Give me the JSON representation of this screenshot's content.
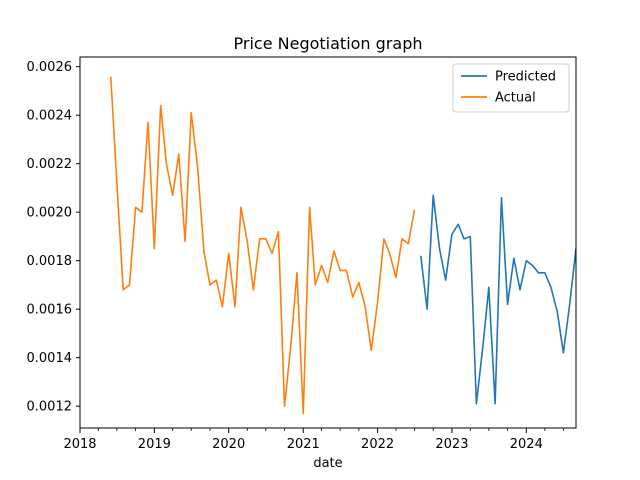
{
  "chart_data": {
    "type": "line",
    "title": "Price Negotiation graph",
    "xlabel": "date",
    "ylabel": "",
    "xlim": [
      "2018-01-01",
      "2024-09-01"
    ],
    "ylim": [
      0.00111,
      0.00264
    ],
    "x_ticks": [
      {
        "date": "2018-01-01",
        "label": "2018"
      },
      {
        "date": "2019-01-01",
        "label": "2019"
      },
      {
        "date": "2020-01-01",
        "label": "2020"
      },
      {
        "date": "2021-01-01",
        "label": "2021"
      },
      {
        "date": "2022-01-01",
        "label": "2022"
      },
      {
        "date": "2023-01-01",
        "label": "2023"
      },
      {
        "date": "2024-01-01",
        "label": "2024"
      }
    ],
    "y_ticks": [
      {
        "value": 0.0012,
        "label": "0.0012"
      },
      {
        "value": 0.0014,
        "label": "0.0014"
      },
      {
        "value": 0.0016,
        "label": "0.0016"
      },
      {
        "value": 0.0018,
        "label": "0.0018"
      },
      {
        "value": 0.002,
        "label": "0.0020"
      },
      {
        "value": 0.0022,
        "label": "0.0022"
      },
      {
        "value": 0.0024,
        "label": "0.0024"
      },
      {
        "value": 0.0026,
        "label": "0.0026"
      }
    ],
    "legend_position": "top-right",
    "grid": false,
    "series": [
      {
        "name": "Predicted",
        "color": "#1f77b4",
        "x": [
          "2022-08-01",
          "2022-09-01",
          "2022-10-01",
          "2022-11-01",
          "2022-12-01",
          "2023-01-01",
          "2023-02-01",
          "2023-03-01",
          "2023-04-01",
          "2023-05-01",
          "2023-06-01",
          "2023-07-01",
          "2023-08-01",
          "2023-09-01",
          "2023-10-01",
          "2023-11-01",
          "2023-12-01",
          "2024-01-01",
          "2024-02-01",
          "2024-03-01",
          "2024-04-01",
          "2024-05-01",
          "2024-06-01",
          "2024-07-01",
          "2024-08-01",
          "2024-09-01"
        ],
        "y": [
          0.00182,
          0.0016,
          0.00207,
          0.00185,
          0.00172,
          0.00191,
          0.00195,
          0.00189,
          0.0019,
          0.00121,
          0.00144,
          0.00169,
          0.00121,
          0.00206,
          0.00162,
          0.00181,
          0.00168,
          0.0018,
          0.00178,
          0.00175,
          0.00175,
          0.00169,
          0.00159,
          0.00142,
          0.00162,
          0.00185
        ]
      },
      {
        "name": "Actual",
        "color": "#ff7f0e",
        "x": [
          "2018-06-01",
          "2018-07-01",
          "2018-08-01",
          "2018-09-01",
          "2018-10-01",
          "2018-11-01",
          "2018-12-01",
          "2019-01-01",
          "2019-02-01",
          "2019-03-01",
          "2019-04-01",
          "2019-05-01",
          "2019-06-01",
          "2019-07-01",
          "2019-08-01",
          "2019-09-01",
          "2019-10-01",
          "2019-11-01",
          "2019-12-01",
          "2020-01-01",
          "2020-02-01",
          "2020-03-01",
          "2020-04-01",
          "2020-05-01",
          "2020-06-01",
          "2020-07-01",
          "2020-08-01",
          "2020-09-01",
          "2020-10-01",
          "2020-11-01",
          "2020-12-01",
          "2021-01-01",
          "2021-02-01",
          "2021-03-01",
          "2021-04-01",
          "2021-05-01",
          "2021-06-01",
          "2021-07-01",
          "2021-08-01",
          "2021-09-01",
          "2021-10-01",
          "2021-11-01",
          "2021-12-01",
          "2022-01-01",
          "2022-02-01",
          "2022-03-01",
          "2022-04-01",
          "2022-05-01",
          "2022-06-01",
          "2022-07-01"
        ],
        "y": [
          0.00256,
          0.00212,
          0.00168,
          0.0017,
          0.00202,
          0.002,
          0.00237,
          0.00185,
          0.00244,
          0.0022,
          0.00207,
          0.00224,
          0.00188,
          0.00241,
          0.00219,
          0.00184,
          0.0017,
          0.00172,
          0.00161,
          0.00183,
          0.00161,
          0.00202,
          0.00188,
          0.00168,
          0.00189,
          0.00189,
          0.00183,
          0.00192,
          0.0012,
          0.00145,
          0.00175,
          0.00117,
          0.00202,
          0.0017,
          0.00178,
          0.00171,
          0.00184,
          0.00176,
          0.00176,
          0.00165,
          0.00171,
          0.00161,
          0.00143,
          0.00163,
          0.00189,
          0.00183,
          0.00173,
          0.00189,
          0.00187,
          0.00201
        ]
      }
    ]
  }
}
